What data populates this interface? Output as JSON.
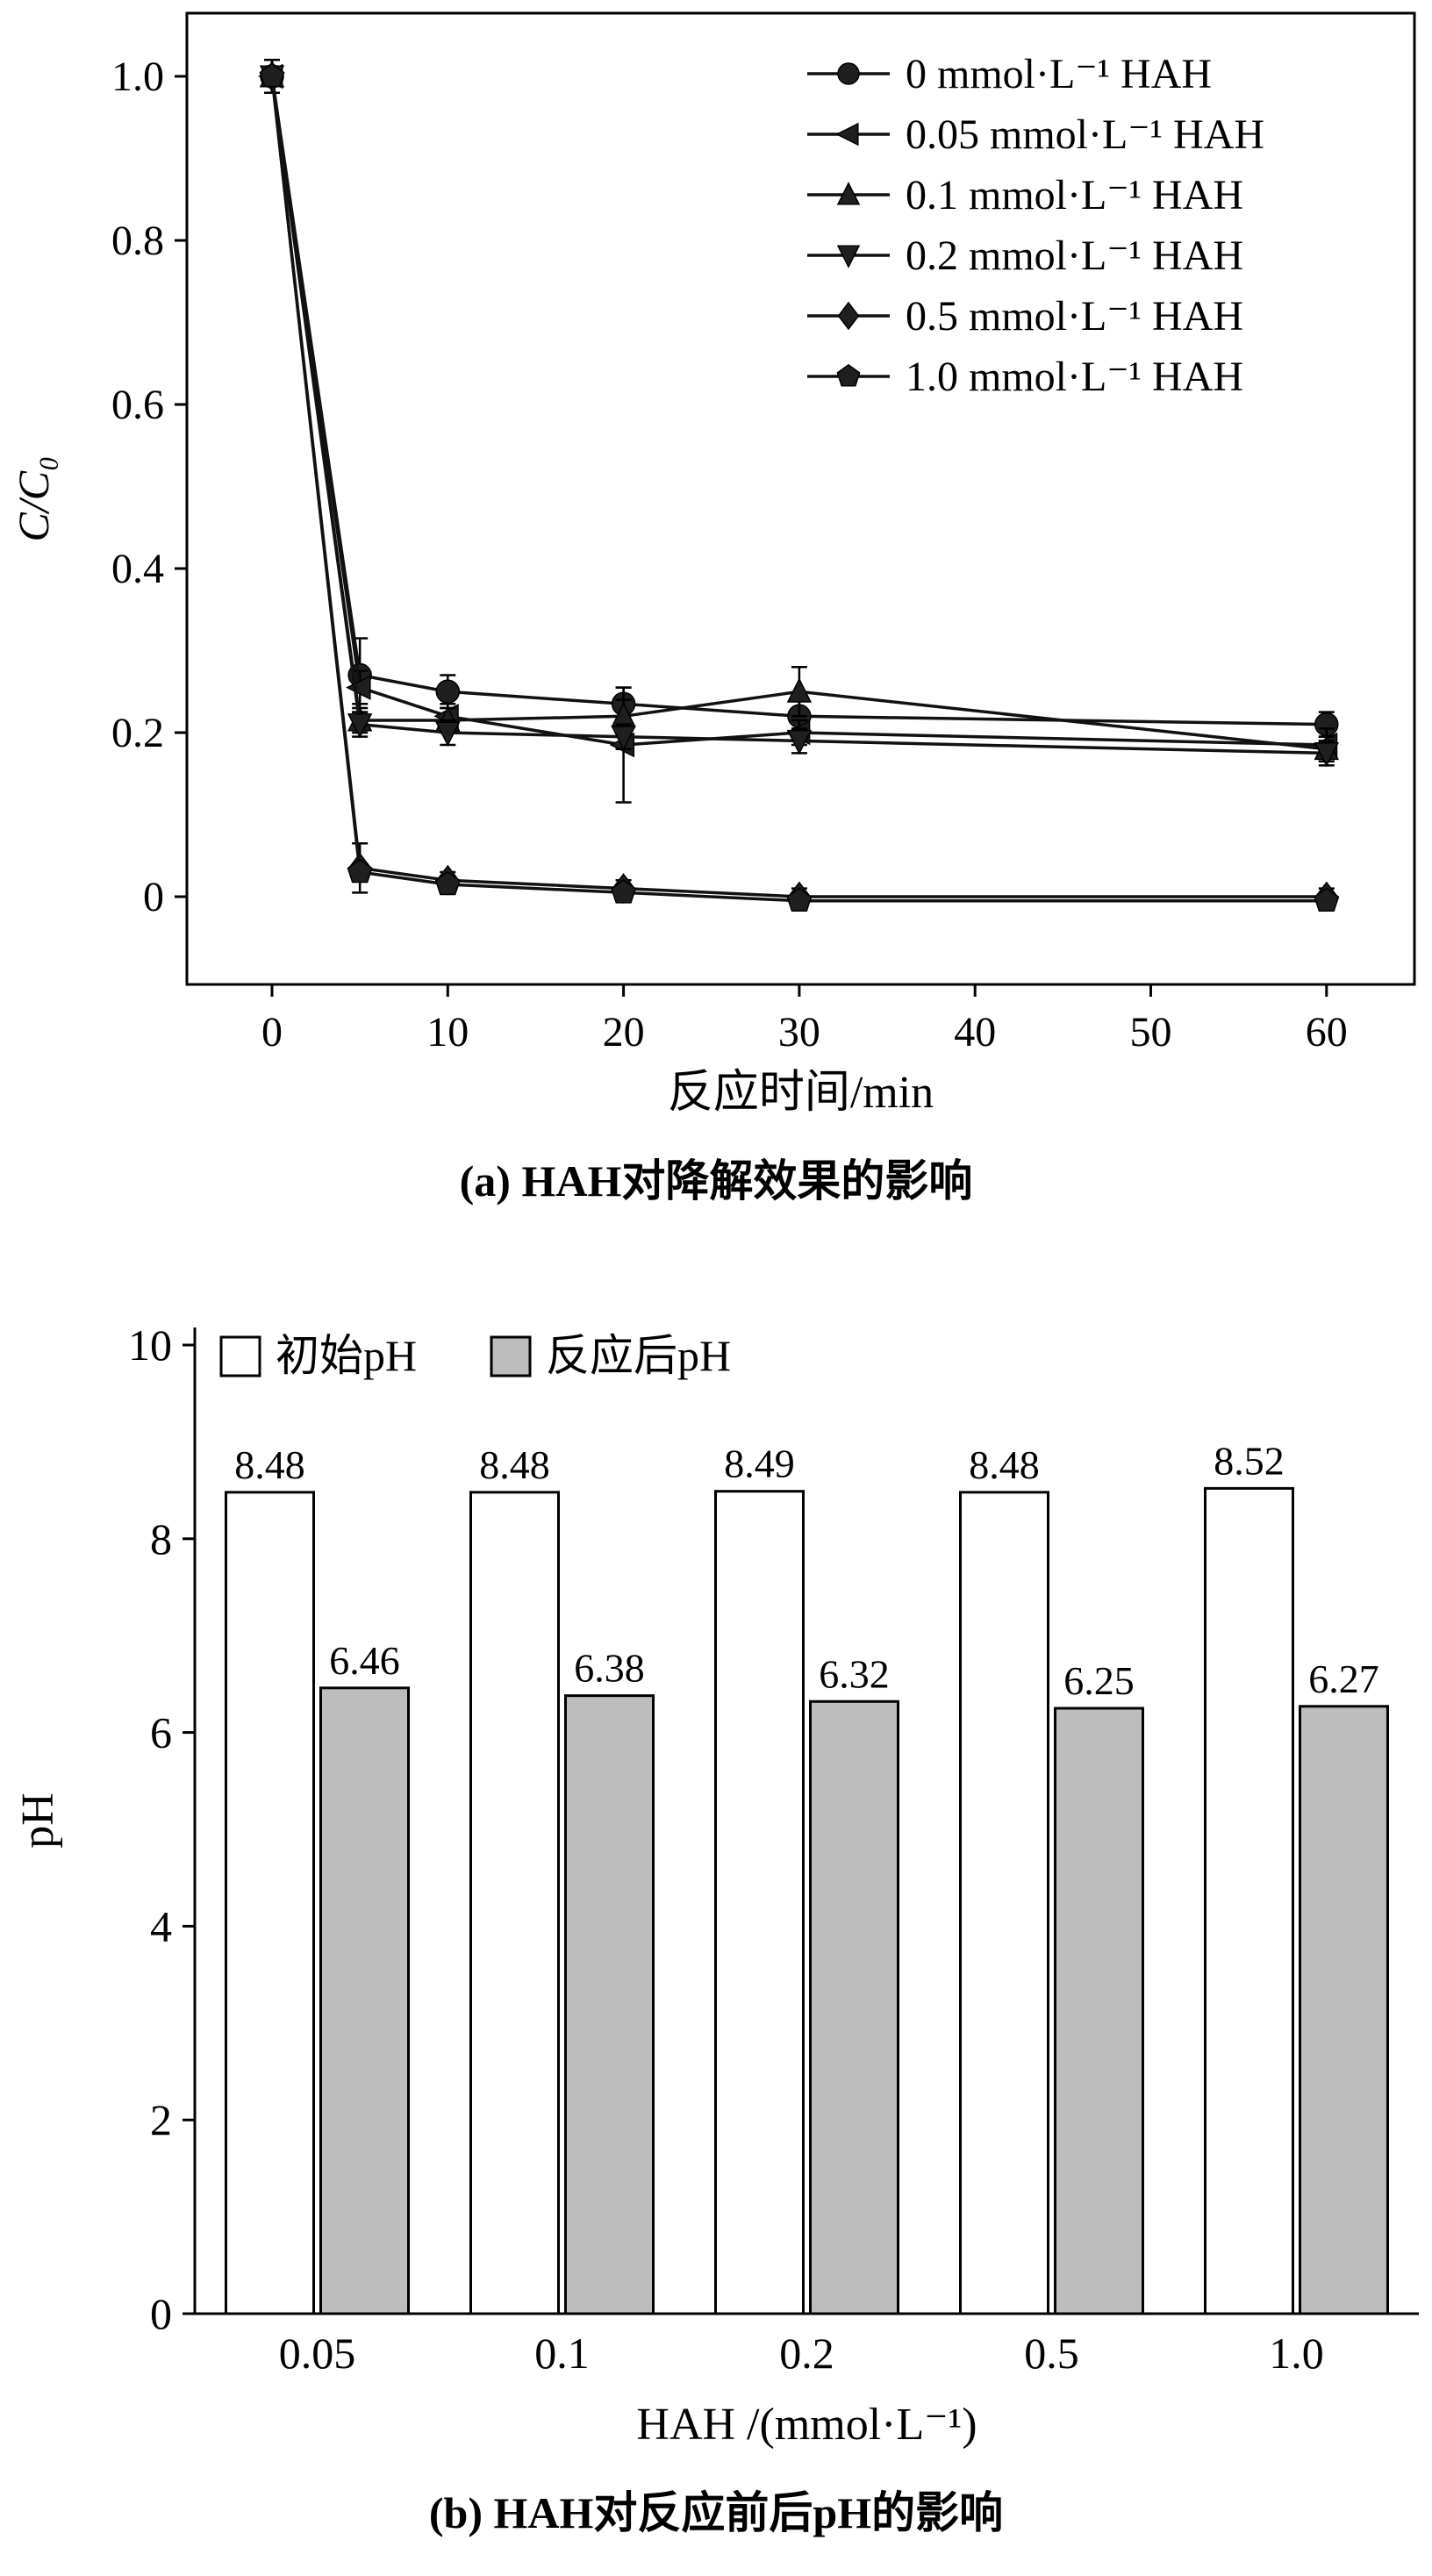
{
  "figure": {
    "background": "#ffffff",
    "text_color": "#000000",
    "line_color": "#111111",
    "marker_fill": "#1f1f1f"
  },
  "chart_data": [
    {
      "type": "line",
      "caption": "(a) HAH对降解效果的影响",
      "xlabel": "反应时间/min",
      "ylabel": "C/C₀",
      "xlim": [
        -5,
        65
      ],
      "ylim": [
        -0.107,
        1.077
      ],
      "xticks": [
        0,
        10,
        20,
        30,
        40,
        50,
        60
      ],
      "xtick_labels": [
        "0",
        "10",
        "20",
        "30",
        "40",
        "50",
        "60"
      ],
      "yticks": [
        0,
        0.2,
        0.4,
        0.6,
        0.8,
        1.0
      ],
      "ytick_labels": [
        "0",
        "0.2",
        "0.4",
        "0.6",
        "0.8",
        "1.0"
      ],
      "x": [
        0,
        5,
        10,
        20,
        30,
        60
      ],
      "legend_position": "top-right",
      "grid": false,
      "series": [
        {
          "name": "0 mmol·L⁻¹ HAH",
          "marker": "circle",
          "values": [
            1.0,
            0.27,
            0.25,
            0.235,
            0.22,
            0.21
          ],
          "errors": [
            0.02,
            0.045,
            0.02,
            0.02,
            0.02,
            0.015
          ]
        },
        {
          "name": "0.05 mmol·L⁻¹ HAH",
          "marker": "triangle-left",
          "values": [
            1.0,
            0.255,
            0.22,
            0.185,
            0.2,
            0.185
          ],
          "errors": [
            0.02,
            0.02,
            0.015,
            0.07,
            0.015,
            0.02
          ]
        },
        {
          "name": "0.1 mmol·L⁻¹ HAH",
          "marker": "triangle-up",
          "values": [
            1.0,
            0.215,
            0.215,
            0.22,
            0.25,
            0.18
          ],
          "errors": [
            0.02,
            0.015,
            0.015,
            0.02,
            0.03,
            0.015
          ]
        },
        {
          "name": "0.2 mmol·L⁻¹ HAH",
          "marker": "triangle-down",
          "values": [
            1.0,
            0.21,
            0.2,
            0.195,
            0.19,
            0.175
          ],
          "errors": [
            0.02,
            0.015,
            0.015,
            0.015,
            0.015,
            0.015
          ]
        },
        {
          "name": "0.5 mmol·L⁻¹ HAH",
          "marker": "diamond",
          "values": [
            1.0,
            0.035,
            0.02,
            0.01,
            0.0,
            0.0
          ],
          "errors": [
            0.02,
            0.03,
            0.01,
            0.01,
            0.01,
            0.01
          ]
        },
        {
          "name": "1.0 mmol·L⁻¹ HAH",
          "marker": "pentagon",
          "values": [
            1.0,
            0.03,
            0.015,
            0.005,
            -0.005,
            -0.005
          ],
          "errors": [
            0.02,
            0.01,
            0.01,
            0.01,
            0.01,
            0.01
          ]
        }
      ]
    },
    {
      "type": "bar",
      "caption": "(b) HAH对反应前后pH的影响",
      "xlabel": "HAH /(mmol·L⁻¹)",
      "ylabel": "pH",
      "ylim": [
        0,
        10
      ],
      "yticks": [
        0,
        2,
        4,
        6,
        8,
        10
      ],
      "ytick_labels": [
        "0",
        "2",
        "4",
        "6",
        "8",
        "10"
      ],
      "categories": [
        "0.05",
        "0.1",
        "0.2",
        "0.5",
        "1.0"
      ],
      "legend_position": "top-left",
      "value_labels": true,
      "grid": false,
      "series": [
        {
          "name": "初始pH",
          "fill": "#ffffff",
          "values": [
            8.48,
            8.48,
            8.49,
            8.48,
            8.52
          ]
        },
        {
          "name": "反应后pH",
          "fill": "#bdbdbd",
          "values": [
            6.46,
            6.38,
            6.32,
            6.25,
            6.27
          ]
        }
      ]
    }
  ]
}
